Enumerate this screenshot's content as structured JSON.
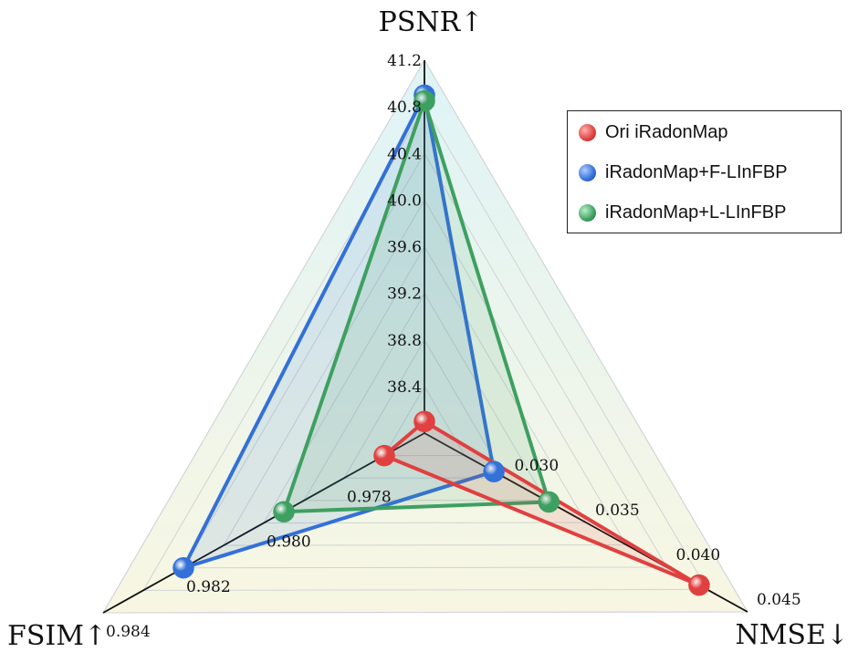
{
  "chart_data": {
    "type": "radar",
    "title": "",
    "axes": [
      {
        "name": "PSNR↑",
        "ticks": [
          "38.4",
          "38.8",
          "39.2",
          "39.6",
          "40.0",
          "40.4",
          "40.8",
          "41.2"
        ],
        "range": [
          38.0,
          41.2
        ]
      },
      {
        "name": "NMSE↓",
        "ticks": [
          "0.030",
          "0.035",
          "0.040",
          "0.045"
        ],
        "range": [
          0.025,
          0.045
        ]
      },
      {
        "name": "FSIM↑",
        "ticks": [
          "0.978",
          "0.980",
          "0.982",
          "0.984"
        ],
        "range": [
          0.976,
          0.984
        ]
      }
    ],
    "legend_position": "top-right",
    "series": [
      {
        "name": "Ori iRadonMap",
        "color": "#e04040",
        "values": [
          38.1,
          0.042,
          0.977
        ]
      },
      {
        "name": "iRadonMap+F-LInFBP",
        "color": "#3370d8",
        "values": [
          40.9,
          0.0293,
          0.982
        ]
      },
      {
        "name": "iRadonMap+L-LInFBP",
        "color": "#3ea060",
        "values": [
          40.85,
          0.0327,
          0.9795
        ]
      }
    ]
  }
}
